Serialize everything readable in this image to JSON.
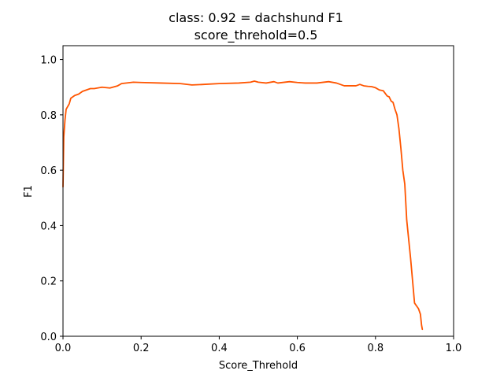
{
  "chart_data": {
    "type": "line",
    "title_line1": "class: 0.92 = dachshund F1",
    "title_line2": "score_threhold=0.5",
    "xlabel": "Score_Threhold",
    "ylabel": "F1",
    "xlim": [
      0.0,
      1.0
    ],
    "ylim": [
      0.0,
      1.05
    ],
    "x_ticks": [
      "0.0",
      "0.2",
      "0.4",
      "0.6",
      "0.8",
      "1.0"
    ],
    "y_ticks": [
      "0.0",
      "0.2",
      "0.4",
      "0.6",
      "0.8",
      "1.0"
    ],
    "grid": false,
    "line_color": "#ff5500",
    "series": [
      {
        "x": [
          0.0,
          0.002,
          0.005,
          0.008,
          0.012,
          0.016,
          0.02,
          0.025,
          0.03,
          0.04,
          0.05,
          0.06,
          0.07,
          0.08,
          0.1,
          0.12,
          0.14,
          0.15,
          0.18,
          0.2,
          0.25,
          0.3,
          0.33,
          0.36,
          0.4,
          0.45,
          0.48,
          0.49,
          0.5,
          0.52,
          0.54,
          0.55,
          0.58,
          0.6,
          0.62,
          0.65,
          0.68,
          0.7,
          0.72,
          0.75,
          0.76,
          0.77,
          0.78,
          0.79,
          0.8,
          0.81,
          0.82,
          0.83,
          0.835,
          0.84,
          0.845,
          0.85,
          0.855,
          0.86,
          0.865,
          0.87,
          0.875,
          0.88,
          0.885,
          0.89,
          0.895,
          0.9,
          0.905,
          0.91,
          0.915,
          0.918,
          0.92
        ],
        "y": [
          0.54,
          0.72,
          0.78,
          0.82,
          0.83,
          0.84,
          0.86,
          0.865,
          0.87,
          0.875,
          0.885,
          0.89,
          0.895,
          0.895,
          0.9,
          0.897,
          0.905,
          0.913,
          0.918,
          0.917,
          0.915,
          0.913,
          0.908,
          0.91,
          0.913,
          0.915,
          0.918,
          0.922,
          0.918,
          0.915,
          0.92,
          0.915,
          0.92,
          0.917,
          0.915,
          0.915,
          0.92,
          0.915,
          0.905,
          0.905,
          0.91,
          0.905,
          0.903,
          0.902,
          0.898,
          0.89,
          0.887,
          0.868,
          0.865,
          0.85,
          0.845,
          0.82,
          0.8,
          0.75,
          0.68,
          0.6,
          0.55,
          0.42,
          0.35,
          0.28,
          0.2,
          0.12,
          0.11,
          0.1,
          0.08,
          0.04,
          0.025
        ]
      }
    ]
  }
}
